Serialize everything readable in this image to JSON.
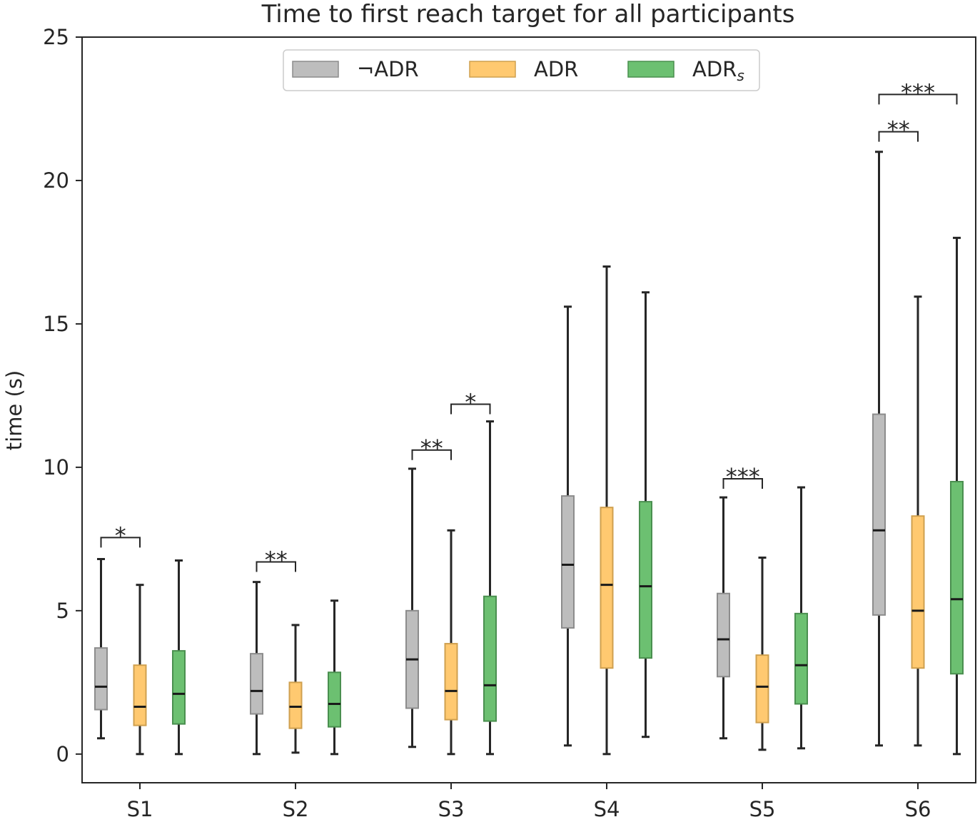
{
  "chart_data": {
    "type": "box",
    "title": "Time to first reach target for all participants",
    "xlabel": "",
    "ylabel": "time (s)",
    "ylim": [
      -1,
      25
    ],
    "yticks": [
      0,
      5,
      10,
      15,
      20,
      25
    ],
    "categories": [
      "S1",
      "S2",
      "S3",
      "S4",
      "S5",
      "S6"
    ],
    "legend_position": "top-center",
    "grid": false,
    "series": [
      {
        "name": "¬ADR",
        "legend_main": "¬ADR",
        "legend_sub": "",
        "color": "#bdbdbd",
        "edge": "#8c8c8c",
        "boxes": [
          {
            "whislo": 0.55,
            "q1": 1.55,
            "med": 2.35,
            "q3": 3.7,
            "whishi": 6.8
          },
          {
            "whislo": 0.0,
            "q1": 1.4,
            "med": 2.2,
            "q3": 3.5,
            "whishi": 6.0
          },
          {
            "whislo": 0.25,
            "q1": 1.6,
            "med": 3.3,
            "q3": 5.0,
            "whishi": 9.95
          },
          {
            "whislo": 0.3,
            "q1": 4.4,
            "med": 6.6,
            "q3": 9.0,
            "whishi": 15.6
          },
          {
            "whislo": 0.55,
            "q1": 2.7,
            "med": 4.0,
            "q3": 5.6,
            "whishi": 8.95
          },
          {
            "whislo": 0.3,
            "q1": 4.85,
            "med": 7.8,
            "q3": 11.85,
            "whishi": 21.0
          }
        ]
      },
      {
        "name": "ADR",
        "legend_main": "ADR",
        "legend_sub": "",
        "color": "#ffc970",
        "edge": "#cfa04f",
        "boxes": [
          {
            "whislo": 0.0,
            "q1": 1.0,
            "med": 1.65,
            "q3": 3.1,
            "whishi": 5.9
          },
          {
            "whislo": 0.05,
            "q1": 0.9,
            "med": 1.65,
            "q3": 2.5,
            "whishi": 4.5
          },
          {
            "whislo": 0.0,
            "q1": 1.2,
            "med": 2.2,
            "q3": 3.85,
            "whishi": 7.8
          },
          {
            "whislo": 0.0,
            "q1": 3.0,
            "med": 5.9,
            "q3": 8.6,
            "whishi": 17.0
          },
          {
            "whislo": 0.15,
            "q1": 1.1,
            "med": 2.35,
            "q3": 3.45,
            "whishi": 6.85
          },
          {
            "whislo": 0.3,
            "q1": 3.0,
            "med": 5.0,
            "q3": 8.3,
            "whishi": 15.95
          }
        ]
      },
      {
        "name": "ADRs",
        "legend_main": "ADR",
        "legend_sub": "s",
        "color": "#6cc071",
        "edge": "#4a8f4f",
        "boxes": [
          {
            "whislo": 0.0,
            "q1": 1.05,
            "med": 2.1,
            "q3": 3.6,
            "whishi": 6.75
          },
          {
            "whislo": 0.0,
            "q1": 0.95,
            "med": 1.75,
            "q3": 2.85,
            "whishi": 5.35
          },
          {
            "whislo": 0.0,
            "q1": 1.15,
            "med": 2.4,
            "q3": 5.5,
            "whishi": 11.6
          },
          {
            "whislo": 0.6,
            "q1": 3.35,
            "med": 5.85,
            "q3": 8.8,
            "whishi": 16.1
          },
          {
            "whislo": 0.2,
            "q1": 1.75,
            "med": 3.1,
            "q3": 4.9,
            "whishi": 9.3
          },
          {
            "whislo": 0.0,
            "q1": 2.8,
            "med": 5.4,
            "q3": 9.5,
            "whishi": 18.0
          }
        ]
      }
    ],
    "annotations": [
      {
        "group": 0,
        "from": 0,
        "to": 1,
        "base": 7.55,
        "text": "*"
      },
      {
        "group": 1,
        "from": 0,
        "to": 1,
        "base": 6.7,
        "text": "**"
      },
      {
        "group": 2,
        "from": 0,
        "to": 1,
        "base": 10.6,
        "text": "**"
      },
      {
        "group": 2,
        "from": 1,
        "to": 2,
        "base": 12.2,
        "text": "*"
      },
      {
        "group": 4,
        "from": 0,
        "to": 1,
        "base": 9.6,
        "text": "***"
      },
      {
        "group": 5,
        "from": 0,
        "to": 1,
        "base": 21.7,
        "text": "**"
      },
      {
        "group": 5,
        "from": 0,
        "to": 2,
        "base": 23.0,
        "text": "***"
      }
    ]
  }
}
